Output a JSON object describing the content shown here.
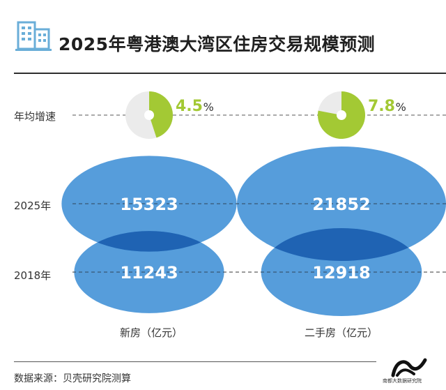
{
  "header": {
    "icon": "building-icon",
    "title": "2025年粤港澳大湾区住房交易规模预测"
  },
  "row_labels": {
    "growth": "年均增速",
    "y2025": "2025年",
    "y2018": "2018年"
  },
  "footer": {
    "source": "数据来源：贝壳研究院测算",
    "brand_icon": "nandu-logo-icon",
    "brand_text": "南都大数据研究院"
  },
  "colors": {
    "ellipse": "#3f8fd6",
    "overlap": "#1f63b3",
    "pie_fill": "#a3c934",
    "pie_bg": "#ebebeb",
    "icon": "#6aaed8"
  },
  "chart_data": {
    "type": "bubble",
    "title": "2025年粤港澳大湾区住房交易规模预测",
    "categories": [
      "新房（亿元）",
      "二手房（亿元）"
    ],
    "series": [
      {
        "name": "2025年",
        "values": [
          15323,
          21852
        ]
      },
      {
        "name": "2018年",
        "values": [
          11243,
          12918
        ]
      }
    ],
    "growth_rate": {
      "label": "年均增速",
      "values": [
        4.5,
        7.8
      ],
      "display": [
        "4.5",
        "7.8"
      ],
      "unit": "%"
    }
  }
}
